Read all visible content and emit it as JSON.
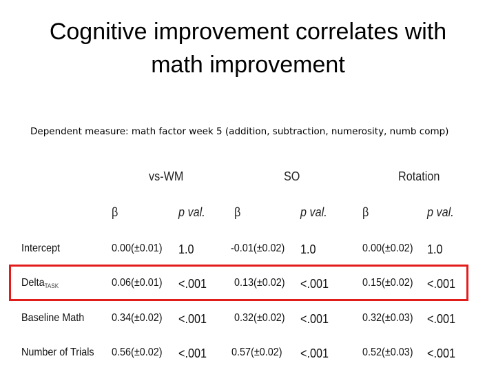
{
  "slide": {
    "title_line1": "Cognitive improvement correlates with",
    "title_line2": "math improvement",
    "subtitle": "Dependent measure: math factor week 5 (addition, subtraction, numerosity, numb comp)"
  },
  "table": {
    "groups": [
      "vs-WM",
      "SO",
      "Rotation"
    ],
    "subheaders": [
      "β",
      "p val.",
      "β",
      "p val.",
      "β",
      "p val."
    ],
    "rows": [
      {
        "label": "Intercept",
        "label_sub": "",
        "cells": [
          "0.00(±0.01)",
          "1.0",
          "-0.01(±0.02)",
          "1.0",
          "0.00(±0.02)",
          "1.0"
        ]
      },
      {
        "label": "Delta",
        "label_sub": "TASK",
        "cells": [
          "0.06(±0.01)",
          "<.001",
          "0.13(±0.02)",
          "<.001",
          "0.15(±0.02)",
          "<.001"
        ]
      },
      {
        "label": "Baseline Math",
        "label_sub": "",
        "cells": [
          "0.34(±0.02)",
          "<.001",
          "0.32(±0.02)",
          "<.001",
          "0.32(±0.03)",
          "<.001"
        ]
      },
      {
        "label": "Number of Trials",
        "label_sub": "",
        "cells": [
          "0.56(±0.02)",
          "<.001",
          "0.57(±0.02)",
          "<.001",
          "0.52(±0.03)",
          "<.001"
        ]
      }
    ],
    "highlight_color": "#e21b1b"
  }
}
